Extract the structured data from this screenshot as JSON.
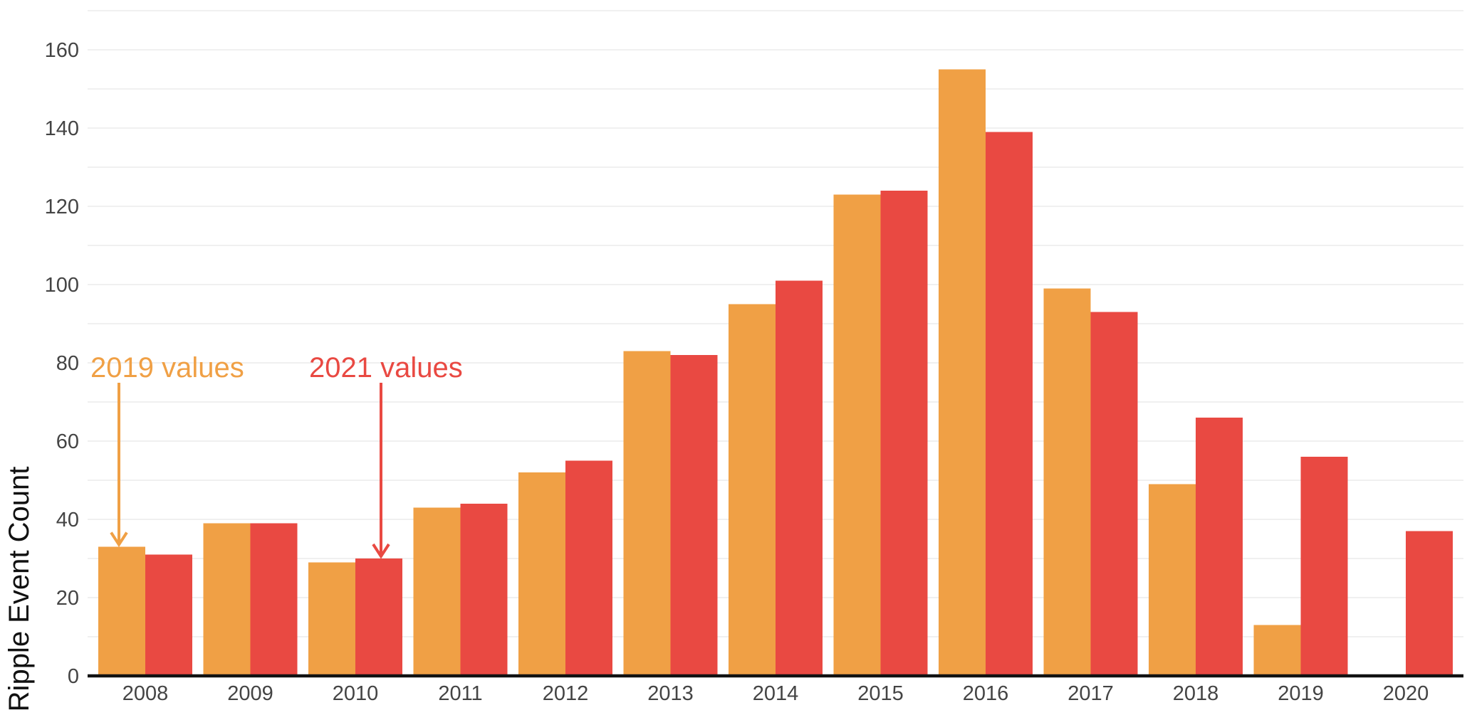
{
  "colors": {
    "series_2019": "#f0a045",
    "series_2021": "#e94942",
    "gridline": "#ebebeb",
    "axis": "#111111",
    "tick_text": "#444444"
  },
  "chart_data": {
    "type": "bar",
    "title": "",
    "xlabel": "",
    "ylabel": "Ripple Event Count",
    "ylim": [
      0,
      170
    ],
    "yticks": [
      0,
      20,
      40,
      60,
      80,
      100,
      120,
      140,
      160
    ],
    "grid": true,
    "legend": "none",
    "categories": [
      "2008",
      "2009",
      "2010",
      "2011",
      "2012",
      "2013",
      "2014",
      "2015",
      "2016",
      "2017",
      "2018",
      "2019",
      "2020"
    ],
    "series": [
      {
        "key": "2019",
        "values": [
          33,
          39,
          29,
          43,
          52,
          83,
          95,
          123,
          155,
          99,
          49,
          13,
          0
        ]
      },
      {
        "key": "2021",
        "values": [
          31,
          39,
          30,
          44,
          55,
          82,
          101,
          124,
          139,
          93,
          66,
          56,
          37
        ]
      }
    ],
    "annotations": [
      {
        "text": "2019 values",
        "series": "2019",
        "category": "2008"
      },
      {
        "text": "2021 values",
        "series": "2021",
        "category": "2010"
      }
    ]
  }
}
